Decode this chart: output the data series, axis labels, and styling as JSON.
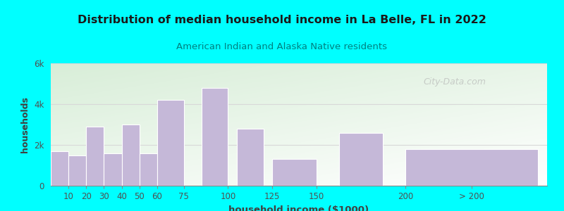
{
  "title": "Distribution of median household income in La Belle, FL in 2022",
  "subtitle": "American Indian and Alaska Native residents",
  "xlabel": "household income ($1000)",
  "ylabel": "households",
  "background_outer": "#00FFFF",
  "background_inner_top_left": "#d8eed8",
  "background_inner_bottom_right": "#ffffff",
  "bar_color": "#c5b8d8",
  "bar_edge_color": "#ffffff",
  "title_color": "#1a1a1a",
  "subtitle_color": "#008080",
  "axis_label_color": "#404040",
  "tick_label_color": "#505050",
  "gridline_color": "#d8d8d8",
  "bar_lefts": [
    5,
    15,
    25,
    35,
    45,
    55,
    67.5,
    92.5,
    112.5,
    137.5,
    175,
    237.5
  ],
  "bar_widths": [
    10,
    10,
    10,
    10,
    10,
    10,
    15,
    15,
    15,
    25,
    25,
    75
  ],
  "values": [
    1700,
    1500,
    2900,
    1600,
    3000,
    1600,
    4200,
    4800,
    2800,
    1300,
    2600,
    1800
  ],
  "ylim": [
    0,
    6000
  ],
  "yticks": [
    0,
    2000,
    4000,
    6000
  ],
  "ytick_labels": [
    "0",
    "2k",
    "4k",
    "6k"
  ],
  "xlim": [
    0,
    280
  ],
  "xtick_positions": [
    10,
    20,
    30,
    40,
    50,
    60,
    75,
    100,
    125,
    150,
    200,
    237.5
  ],
  "xtick_labels": [
    "10",
    "20",
    "30",
    "40",
    "50",
    "60",
    "75",
    "100",
    "125",
    "150",
    "200",
    "> 200"
  ],
  "watermark": "City-Data.com"
}
